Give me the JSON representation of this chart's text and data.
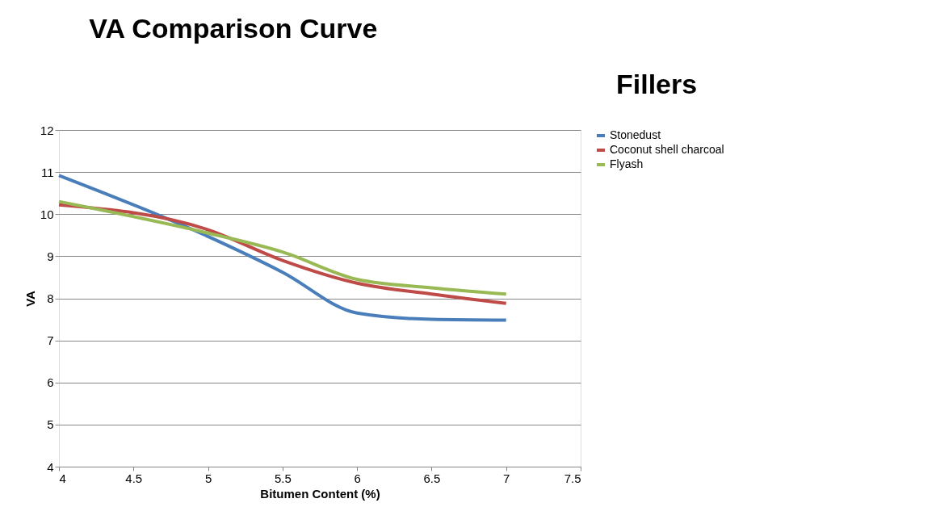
{
  "chart_data": {
    "type": "line",
    "title": "VA Comparison Curve",
    "annotations": [
      "Fillers"
    ],
    "xlabel": "Bitumen Content (%)",
    "ylabel": "VA",
    "x": [
      4,
      5,
      5.5,
      6,
      6.5,
      7
    ],
    "series": [
      {
        "name": "Stonedust",
        "color": "#4a7ebb",
        "values": [
          10.92,
          9.47,
          8.62,
          7.65,
          7.5,
          7.48
        ]
      },
      {
        "name": "Coconut shell charcoal",
        "color": "#be4b48",
        "values": [
          10.22,
          9.63,
          8.9,
          8.36,
          8.1,
          7.88
        ]
      },
      {
        "name": "Flyash",
        "color": "#98b954",
        "values": [
          10.3,
          9.55,
          9.1,
          8.45,
          8.25,
          8.1
        ]
      }
    ],
    "xlim": [
      4,
      7.5
    ],
    "xticks": [
      4,
      4.5,
      5,
      5.5,
      6,
      6.5,
      7,
      7.5
    ],
    "ylim": [
      4,
      12
    ],
    "yticks": [
      4,
      5,
      6,
      7,
      8,
      9,
      10,
      11,
      12
    ],
    "grid": "y",
    "legend": "right",
    "marker": "none",
    "line_style": "solid"
  }
}
